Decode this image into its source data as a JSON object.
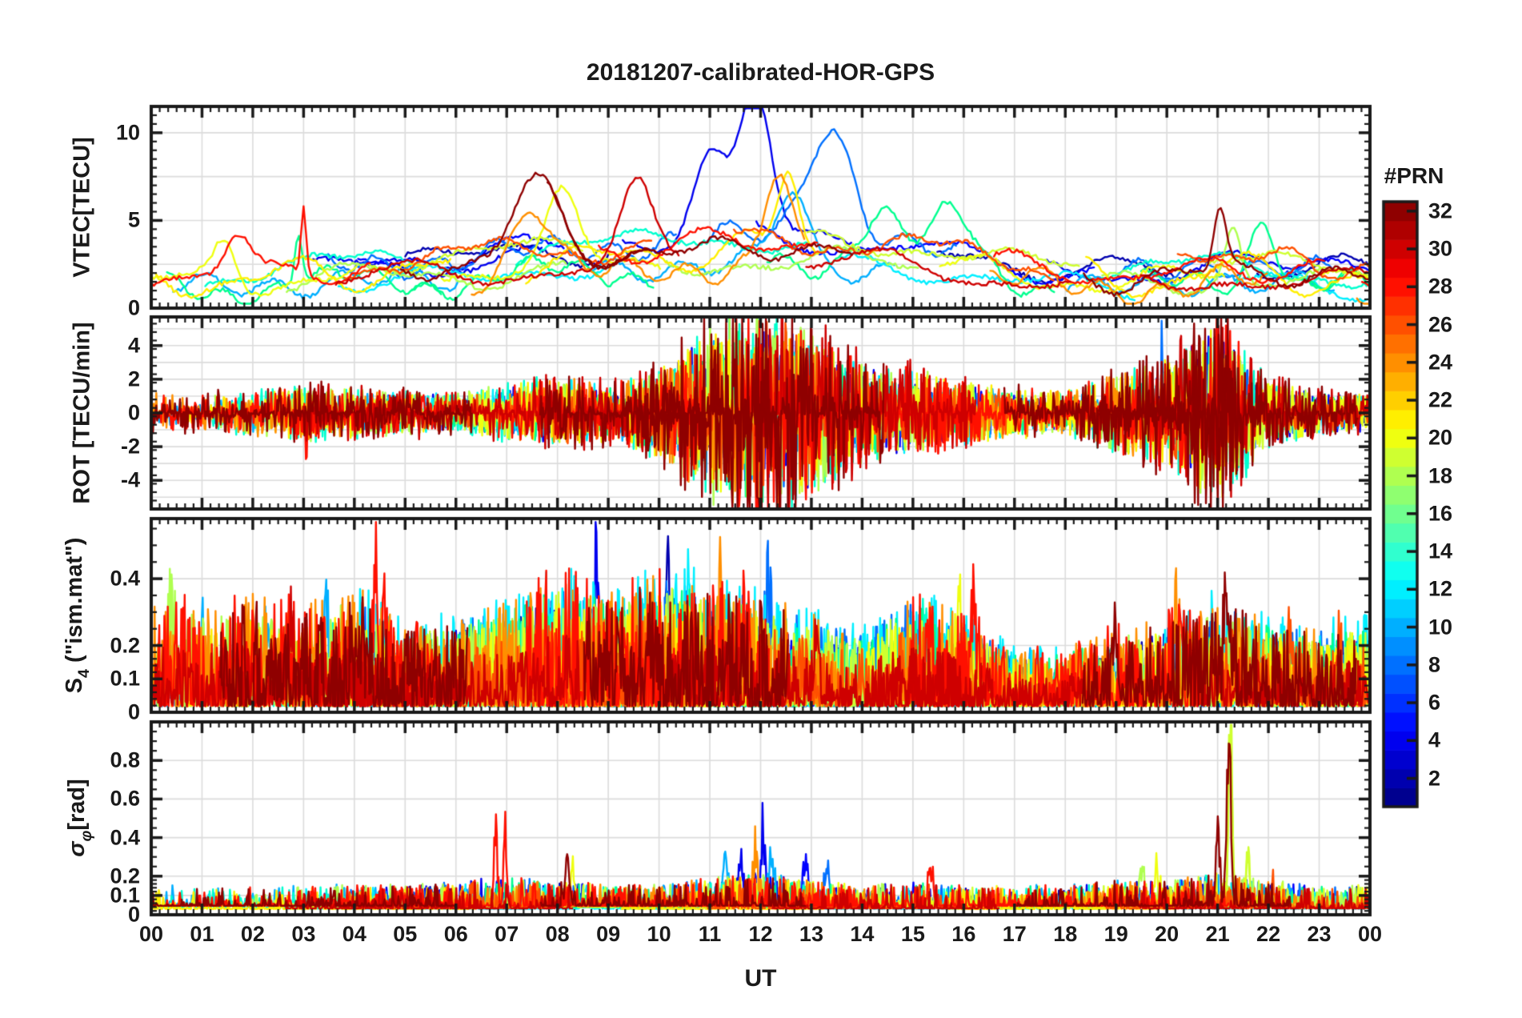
{
  "figure": {
    "title": "20181207-calibrated-HOR-GPS",
    "xlabel": "UT",
    "background": "#ffffff",
    "frame_color": "#1a1a1a",
    "grid_color": "#dcdcdc"
  },
  "chart_data": {
    "type": "line",
    "title": "20181207-calibrated-HOR-GPS",
    "x": {
      "label": "UT",
      "lim": [
        0,
        24
      ],
      "tick_labels": [
        "00",
        "01",
        "02",
        "03",
        "04",
        "05",
        "06",
        "07",
        "08",
        "09",
        "10",
        "11",
        "12",
        "13",
        "14",
        "15",
        "16",
        "17",
        "18",
        "19",
        "20",
        "21",
        "22",
        "23",
        "00"
      ],
      "minor_step_hours": 0.16667
    },
    "colormap": "jet",
    "seed": 20181207,
    "prns": [
      2,
      4,
      5,
      8,
      10,
      12,
      14,
      16,
      18,
      19,
      20,
      21,
      24,
      26,
      28,
      30,
      32
    ],
    "prn_colors": {
      "2": "#0000AF",
      "4": "#0000EF",
      "5": "#0000FF",
      "8": "#0070FF",
      "10": "#00AFFF",
      "12": "#00EFFF",
      "14": "#00FFCF",
      "16": "#00FF8F",
      "18": "#AFFF50",
      "19": "#CFFF30",
      "20": "#EFFF10",
      "21": "#FFEF00",
      "24": "#FF8F00",
      "26": "#FF5000",
      "28": "#FF1000",
      "30": "#CF0000",
      "32": "#8F0000"
    },
    "colorbar": {
      "title": "#PRN",
      "n_levels": 32,
      "caxis": [
        0.5,
        32.5
      ],
      "ticks": [
        2,
        4,
        6,
        8,
        10,
        12,
        14,
        16,
        18,
        20,
        22,
        24,
        26,
        28,
        30,
        32
      ]
    },
    "panels": [
      {
        "id": "vtec",
        "ylabel_parts": [
          {
            "text": "VTEC[TECU]"
          }
        ],
        "ylim": [
          0,
          11.5
        ],
        "yticks": [
          {
            "v": 0,
            "label": "0"
          },
          {
            "v": 5,
            "label": "5"
          },
          {
            "v": 10,
            "label": "10"
          }
        ],
        "grid": [
          2.5,
          5,
          7.5,
          10
        ],
        "yminor": {
          "step": 0.5
        },
        "envelope_hourly": [
          2.3,
          2.2,
          2.4,
          2.7,
          2.9,
          3.0,
          3.2,
          3.7,
          3.9,
          4.0,
          4.3,
          4.6,
          4.8,
          4.5,
          4.2,
          3.9,
          3.4,
          3.0,
          2.6,
          2.1,
          2.3,
          3.1,
          2.9,
          2.4,
          2.1
        ],
        "events": [
          {
            "t": 1.45,
            "prn": 20,
            "v": 5.0,
            "w": 0.2
          },
          {
            "t": 1.7,
            "prn": 28,
            "v": 5.0,
            "w": 0.25
          },
          {
            "t": 2.9,
            "prn": 16,
            "v": 5.8,
            "w": 0.08
          },
          {
            "t": 3.0,
            "prn": 28,
            "v": 6.5,
            "w": 0.05
          },
          {
            "t": 7.55,
            "prn": 32,
            "v": 7.1,
            "w": 0.45
          },
          {
            "t": 7.5,
            "prn": 24,
            "v": 6.7,
            "w": 0.35
          },
          {
            "t": 8.1,
            "prn": 20,
            "v": 6.3,
            "w": 0.3
          },
          {
            "t": 9.55,
            "prn": 30,
            "v": 6.9,
            "w": 0.3
          },
          {
            "t": 11.0,
            "prn": 4,
            "v": 8.0,
            "w": 0.35
          },
          {
            "t": 11.9,
            "prn": 4,
            "v": 11.3,
            "w": 0.3
          },
          {
            "t": 12.35,
            "prn": 24,
            "v": 8.3,
            "w": 0.25
          },
          {
            "t": 12.55,
            "prn": 21,
            "v": 7.3,
            "w": 0.2
          },
          {
            "t": 12.6,
            "prn": 10,
            "v": 7.2,
            "w": 0.3
          },
          {
            "t": 13.35,
            "prn": 8,
            "v": 9.5,
            "w": 0.45
          },
          {
            "t": 14.35,
            "prn": 16,
            "v": 6.4,
            "w": 0.5
          },
          {
            "t": 15.8,
            "prn": 16,
            "v": 6.2,
            "w": 0.4
          },
          {
            "t": 21.05,
            "prn": 32,
            "v": 6.2,
            "w": 0.12
          },
          {
            "t": 21.3,
            "prn": 18,
            "v": 6.0,
            "w": 0.15
          },
          {
            "t": 21.9,
            "prn": 16,
            "v": 6.9,
            "w": 0.25
          },
          {
            "t": 22.3,
            "prn": 26,
            "v": 4.6,
            "w": 0.4
          }
        ]
      },
      {
        "id": "rot",
        "ylabel_parts": [
          {
            "text": "ROT [TECU/min]"
          }
        ],
        "ylim": [
          -5.7,
          5.7
        ],
        "yticks": [
          {
            "v": 4,
            "label": "4"
          },
          {
            "v": 2,
            "label": "2"
          },
          {
            "v": 0,
            "label": "0"
          },
          {
            "v": -2,
            "label": "-2"
          },
          {
            "v": -4,
            "label": "-4"
          }
        ],
        "grid": [
          -5,
          -4,
          -3,
          -2,
          -1,
          0,
          1,
          2,
          3,
          4,
          5
        ],
        "yminor": {
          "step": 0.5
        },
        "envelope_hourly": [
          0.35,
          0.3,
          0.4,
          0.5,
          0.45,
          0.4,
          0.35,
          0.5,
          0.65,
          0.55,
          0.8,
          1.6,
          2.0,
          1.5,
          0.9,
          0.8,
          0.6,
          0.45,
          0.4,
          0.7,
          1.0,
          1.7,
          0.6,
          0.4,
          0.35
        ],
        "events": [
          {
            "t": 3.02,
            "prn": 28,
            "v": 1.5
          },
          {
            "t": 3.05,
            "prn": 28,
            "v": -3.4
          },
          {
            "t": 11.55,
            "prn": 16,
            "v": 4.7
          },
          {
            "t": 11.7,
            "prn": 4,
            "v": -4.5
          },
          {
            "t": 11.75,
            "prn": 2,
            "v": 3.5
          },
          {
            "t": 12.1,
            "prn": 24,
            "v": 3.9
          },
          {
            "t": 12.2,
            "prn": 32,
            "v": -4.6
          },
          {
            "t": 12.5,
            "prn": 26,
            "v": 3.2
          },
          {
            "t": 13.55,
            "prn": 28,
            "v": -3.7
          },
          {
            "t": 19.9,
            "prn": 8,
            "v": 4.2
          },
          {
            "t": 21.1,
            "prn": 8,
            "v": -5.0
          },
          {
            "t": 21.15,
            "prn": 8,
            "v": 4.0
          },
          {
            "t": 21.2,
            "prn": 32,
            "v": 4.4
          },
          {
            "t": 21.25,
            "prn": 32,
            "v": -4.5
          },
          {
            "t": 21.3,
            "prn": 14,
            "v": -4.7
          },
          {
            "t": 21.45,
            "prn": 20,
            "v": 2.6
          }
        ]
      },
      {
        "id": "s4",
        "ylabel_parts": [
          {
            "text": "S"
          },
          {
            "sub": "4"
          },
          {
            "text": " (\"ism.mat\")"
          }
        ],
        "ylim": [
          0,
          0.58
        ],
        "yticks": [
          {
            "v": 0,
            "label": "0"
          },
          {
            "v": 0.1,
            "label": "0.1"
          },
          {
            "v": 0.2,
            "label": "0.2"
          },
          {
            "v": 0.4,
            "label": "0.4"
          }
        ],
        "grid": [
          0.1,
          0.2,
          0.4
        ],
        "yminor": {
          "low_step": 0.02,
          "high_step": 0.05,
          "threshold": 0.2
        },
        "envelope_hourly": [
          0.1,
          0.09,
          0.1,
          0.09,
          0.11,
          0.07,
          0.08,
          0.09,
          0.12,
          0.1,
          0.12,
          0.11,
          0.1,
          0.08,
          0.07,
          0.1,
          0.08,
          0.05,
          0.05,
          0.07,
          0.08,
          0.1,
          0.08,
          0.07,
          0.08
        ],
        "events": [
          {
            "t": 0.4,
            "prn": 18,
            "v": 0.25
          },
          {
            "t": 1.0,
            "prn": 10,
            "v": 0.27
          },
          {
            "t": 2.3,
            "prn": 10,
            "v": 0.28
          },
          {
            "t": 2.75,
            "prn": 30,
            "v": 0.25
          },
          {
            "t": 3.45,
            "prn": 10,
            "v": 0.29
          },
          {
            "t": 4.42,
            "prn": 28,
            "v": 0.35
          },
          {
            "t": 4.6,
            "prn": 28,
            "v": 0.28
          },
          {
            "t": 6.0,
            "prn": 4,
            "v": 0.2
          },
          {
            "t": 7.7,
            "prn": 18,
            "v": 0.27
          },
          {
            "t": 8.77,
            "prn": 4,
            "v": 0.37
          },
          {
            "t": 10.15,
            "prn": 2,
            "v": 0.34
          },
          {
            "t": 10.6,
            "prn": 12,
            "v": 0.28
          },
          {
            "t": 11.2,
            "prn": 24,
            "v": 0.28
          },
          {
            "t": 11.6,
            "prn": 28,
            "v": 0.24
          },
          {
            "t": 12.15,
            "prn": 8,
            "v": 0.3
          },
          {
            "t": 13.1,
            "prn": 30,
            "v": 0.22
          },
          {
            "t": 15.2,
            "prn": 14,
            "v": 0.33
          },
          {
            "t": 15.9,
            "prn": 20,
            "v": 0.31
          },
          {
            "t": 16.2,
            "prn": 28,
            "v": 0.25
          },
          {
            "t": 17.3,
            "prn": 10,
            "v": 0.15
          },
          {
            "t": 18.2,
            "prn": 21,
            "v": 0.14
          },
          {
            "t": 19.0,
            "prn": 32,
            "v": 0.22
          },
          {
            "t": 20.2,
            "prn": 24,
            "v": 0.26
          },
          {
            "t": 21.2,
            "prn": 32,
            "v": 0.33
          },
          {
            "t": 22.4,
            "prn": 26,
            "v": 0.28
          },
          {
            "t": 23.4,
            "prn": 26,
            "v": 0.2
          }
        ]
      },
      {
        "id": "sigma_phi",
        "ylabel_parts": [
          {
            "italic": "σ"
          },
          {
            "subItalic": "φ"
          },
          {
            "text": "[rad]"
          }
        ],
        "ylim": [
          0,
          1.0
        ],
        "yticks": [
          {
            "v": 0,
            "label": "0"
          },
          {
            "v": 0.1,
            "label": "0.1"
          },
          {
            "v": 0.2,
            "label": "0.2"
          },
          {
            "v": 0.4,
            "label": "0.4"
          },
          {
            "v": 0.6,
            "label": "0.6"
          },
          {
            "v": 0.8,
            "label": "0.8"
          }
        ],
        "grid": [
          0.1,
          0.2,
          0.4,
          0.6,
          0.8
        ],
        "yminor": {
          "low_step": 0.02,
          "high_step": 0.05,
          "threshold": 0.2
        },
        "envelope_hourly": [
          0.05,
          0.05,
          0.05,
          0.05,
          0.05,
          0.05,
          0.06,
          0.07,
          0.06,
          0.05,
          0.05,
          0.07,
          0.08,
          0.06,
          0.05,
          0.06,
          0.05,
          0.05,
          0.05,
          0.06,
          0.06,
          0.08,
          0.06,
          0.05,
          0.05
        ],
        "events": [
          {
            "t": 6.78,
            "prn": 28,
            "v": 0.45,
            "w": 0.03
          },
          {
            "t": 6.97,
            "prn": 28,
            "v": 0.42,
            "w": 0.03
          },
          {
            "t": 7.25,
            "prn": 16,
            "v": 0.15
          },
          {
            "t": 7.6,
            "prn": 16,
            "v": 0.17
          },
          {
            "t": 8.2,
            "prn": 32,
            "v": 0.28,
            "w": 0.04
          },
          {
            "t": 8.3,
            "prn": 20,
            "v": 0.22,
            "w": 0.04
          },
          {
            "t": 8.55,
            "prn": 12,
            "v": 0.15
          },
          {
            "t": 11.3,
            "prn": 10,
            "v": 0.25
          },
          {
            "t": 11.6,
            "prn": 4,
            "v": 0.25
          },
          {
            "t": 11.9,
            "prn": 24,
            "v": 0.3
          },
          {
            "t": 12.05,
            "prn": 4,
            "v": 0.35
          },
          {
            "t": 12.2,
            "prn": 10,
            "v": 0.3
          },
          {
            "t": 12.9,
            "prn": 5,
            "v": 0.27
          },
          {
            "t": 13.3,
            "prn": 8,
            "v": 0.2
          },
          {
            "t": 15.35,
            "prn": 28,
            "v": 0.22
          },
          {
            "t": 19.5,
            "prn": 18,
            "v": 0.2
          },
          {
            "t": 19.8,
            "prn": 20,
            "v": 0.22
          },
          {
            "t": 21.0,
            "prn": 32,
            "v": 0.44,
            "w": 0.03
          },
          {
            "t": 21.22,
            "prn": 32,
            "v": 0.97,
            "w": 0.04
          },
          {
            "t": 21.25,
            "prn": 19,
            "v": 0.95,
            "w": 0.035
          },
          {
            "t": 21.6,
            "prn": 19,
            "v": 0.3,
            "w": 0.04
          },
          {
            "t": 22.1,
            "prn": 26,
            "v": 0.12
          }
        ]
      }
    ]
  }
}
